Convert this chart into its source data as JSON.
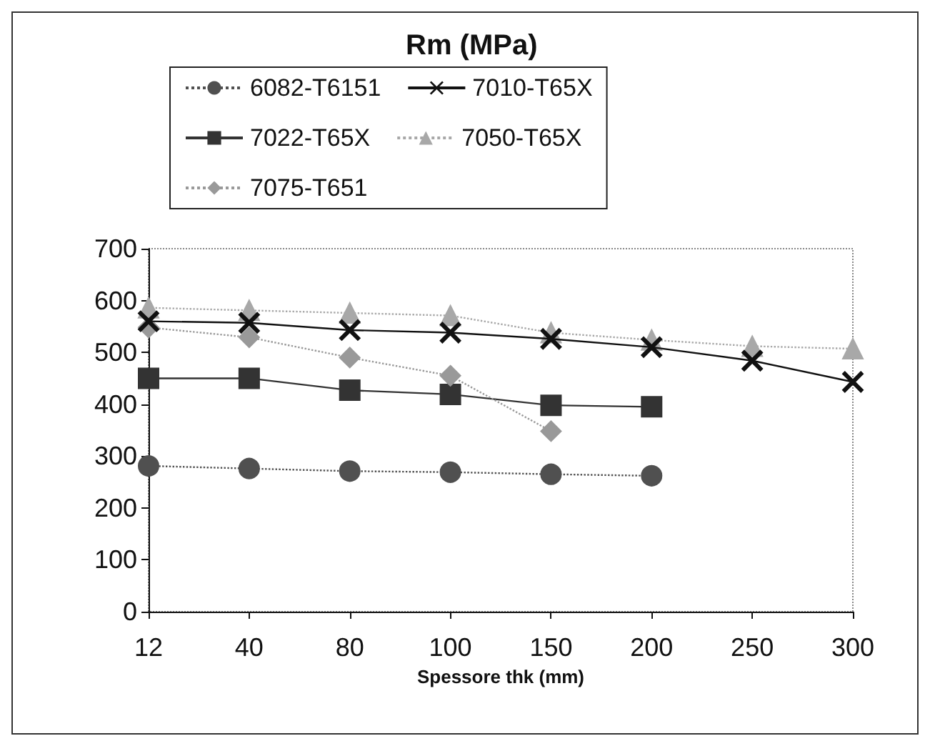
{
  "chart_data": {
    "type": "line",
    "title": "Rm (MPa)",
    "xlabel": "Spessore thk (mm)",
    "categories": [
      "12",
      "40",
      "80",
      "100",
      "150",
      "200",
      "250",
      "300"
    ],
    "series": [
      {
        "name": "6082-T6151",
        "color": "#505050",
        "marker": "circle",
        "line_style": "dotted",
        "values": [
          281,
          276,
          271,
          269,
          265,
          262,
          null,
          null
        ]
      },
      {
        "name": "7010-T65X",
        "color": "#111111",
        "marker": "cross",
        "line_style": "solid",
        "values": [
          560,
          557,
          543,
          538,
          526,
          510,
          484,
          443
        ]
      },
      {
        "name": "7022-T65X",
        "color": "#333333",
        "marker": "square",
        "line_style": "solid",
        "values": [
          450,
          450,
          427,
          419,
          398,
          395,
          null,
          null
        ]
      },
      {
        "name": "7050-T65X",
        "color": "#a8a8a8",
        "marker": "triangle",
        "line_style": "dotted",
        "values": [
          586,
          581,
          576,
          571,
          538,
          524,
          512,
          507
        ]
      },
      {
        "name": "7075-T651",
        "color": "#999999",
        "marker": "diamond",
        "line_style": "dotted",
        "values": [
          548,
          529,
          490,
          455,
          348,
          null,
          null,
          null
        ]
      }
    ],
    "ylim": [
      0,
      700
    ],
    "yticks": [
      0,
      100,
      200,
      300,
      400,
      500,
      600,
      700
    ],
    "grid": false,
    "legend": "top left"
  }
}
